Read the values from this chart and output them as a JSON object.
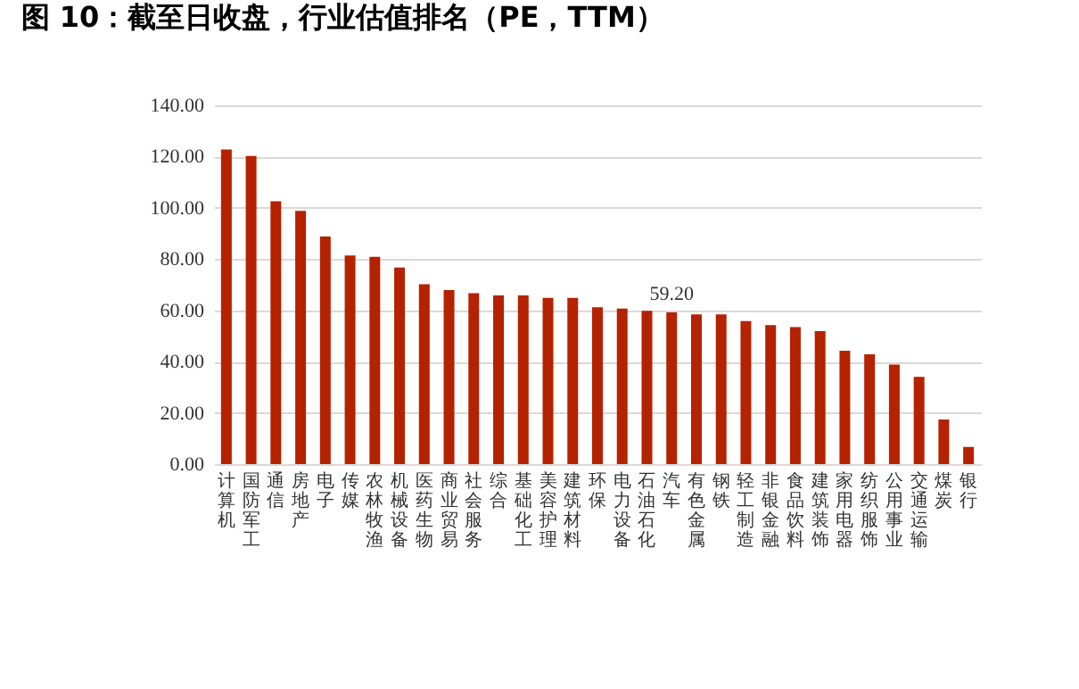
{
  "chart_data": {
    "type": "bar",
    "title": "图 10：截至日收盘，行业估值排名（PE，TTM）",
    "categories": [
      "计算机",
      "国防军工",
      "通信",
      "房地产",
      "电子",
      "传媒",
      "农林牧渔",
      "机械设备",
      "医药生物",
      "商业贸易",
      "社会服务",
      "综合",
      "基础化工",
      "美容护理",
      "建筑材料",
      "环保",
      "电力设备",
      "石油石化",
      "汽车",
      "有色金属",
      "钢铁",
      "轻工制造",
      "非银金融",
      "食品饮料",
      "建筑装饰",
      "家用电器",
      "纺织服饰",
      "公用事业",
      "交通运输",
      "煤炭",
      "银行"
    ],
    "values": [
      122.8,
      120.2,
      102.6,
      98.8,
      88.8,
      81.4,
      80.9,
      76.7,
      70.2,
      67.9,
      66.7,
      65.8,
      65.8,
      64.9,
      64.9,
      61.2,
      60.7,
      59.8,
      59.2,
      58.4,
      58.4,
      55.8,
      54.2,
      53.5,
      51.9,
      44.2,
      42.8,
      38.8,
      34.0,
      17.4,
      6.7
    ],
    "value_labels": [
      null,
      null,
      null,
      null,
      null,
      null,
      null,
      null,
      null,
      null,
      null,
      null,
      null,
      null,
      null,
      null,
      null,
      null,
      "59.20",
      null,
      null,
      null,
      null,
      null,
      null,
      null,
      null,
      null,
      null,
      null,
      null
    ],
    "color": "#b42200",
    "ylim": [
      0,
      140
    ],
    "yticks": [
      {
        "value": 0,
        "label": "0.00"
      },
      {
        "value": 20,
        "label": "20.00"
      },
      {
        "value": 40,
        "label": "40.00"
      },
      {
        "value": 60,
        "label": "60.00"
      },
      {
        "value": 80,
        "label": "80.00"
      },
      {
        "value": 100,
        "label": "100.00"
      },
      {
        "value": 120,
        "label": "120.00"
      },
      {
        "value": 140,
        "label": "140.00"
      }
    ],
    "grid": "y"
  }
}
